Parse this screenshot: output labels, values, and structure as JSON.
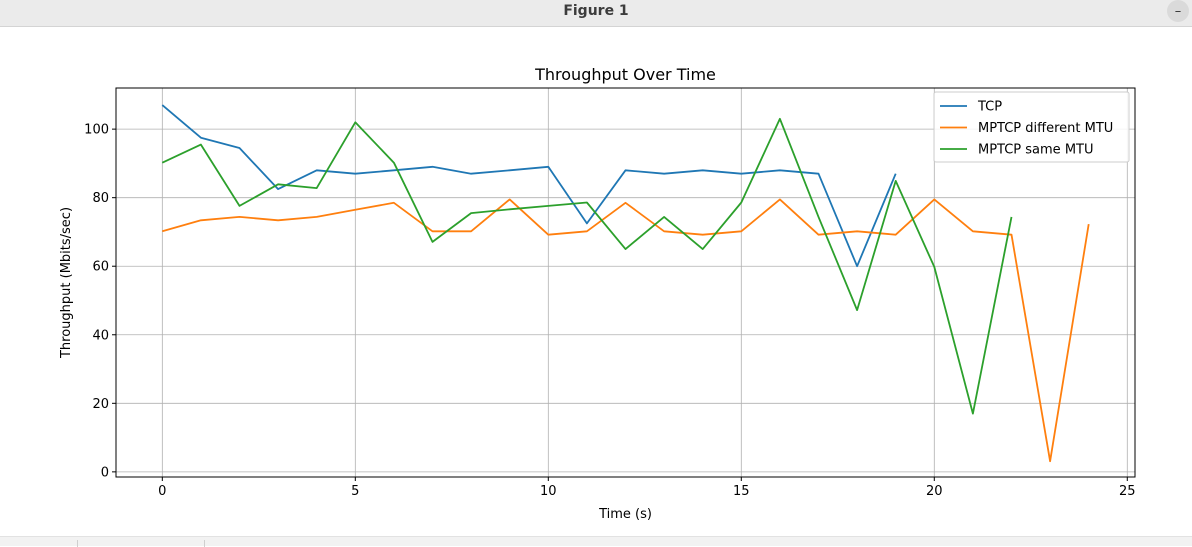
{
  "window": {
    "title": "Figure 1",
    "minimize_label": "–"
  },
  "chart_data": {
    "type": "line",
    "title": "Throughput Over Time",
    "xlabel": "Time (s)",
    "ylabel": "Throughput (Mbits/sec)",
    "xlim": [
      -1.2,
      25.2
    ],
    "ylim": [
      -1.5,
      112
    ],
    "xticks": [
      0,
      5,
      10,
      15,
      20,
      25
    ],
    "yticks": [
      0,
      20,
      40,
      60,
      80,
      100
    ],
    "grid": true,
    "legend_position": "top-right",
    "series": [
      {
        "name": "TCP",
        "color": "#1f77b4",
        "x": [
          0,
          1,
          2,
          3,
          4,
          5,
          6,
          7,
          8,
          9,
          10,
          11,
          12,
          13,
          14,
          15,
          16,
          17,
          18,
          19
        ],
        "y": [
          107,
          97.5,
          94.5,
          82.5,
          88,
          87,
          88,
          89,
          87,
          88,
          89,
          72.5,
          88,
          87,
          88,
          87,
          88,
          87,
          60,
          87
        ]
      },
      {
        "name": "MPTCP different MTU",
        "color": "#ff7f0e",
        "x": [
          0,
          1,
          2,
          3,
          4,
          5,
          6,
          7,
          8,
          9,
          10,
          11,
          12,
          13,
          14,
          15,
          16,
          17,
          18,
          19,
          20,
          21,
          22,
          23,
          24
        ],
        "y": [
          70.2,
          73.4,
          74.4,
          73.4,
          74.4,
          76.5,
          78.5,
          70.2,
          70.2,
          79.5,
          69.2,
          70.2,
          78.5,
          70.2,
          69.2,
          70.2,
          79.5,
          69.2,
          70.2,
          69.2,
          79.5,
          70.2,
          69.2,
          3.1,
          72.3
        ]
      },
      {
        "name": "MPTCP same MTU",
        "color": "#2ca02c",
        "x": [
          0,
          1,
          2,
          3,
          4,
          5,
          6,
          7,
          8,
          9,
          10,
          11,
          12,
          13,
          14,
          15,
          16,
          17,
          18,
          19,
          20,
          21,
          22
        ],
        "y": [
          90.2,
          95.5,
          77.6,
          83.9,
          82.8,
          102,
          90.2,
          67.1,
          75.5,
          76.6,
          77.6,
          78.6,
          65,
          74.4,
          65,
          78.6,
          103,
          74.4,
          47.2,
          84.9,
          59.8,
          17,
          74.4
        ]
      }
    ]
  }
}
